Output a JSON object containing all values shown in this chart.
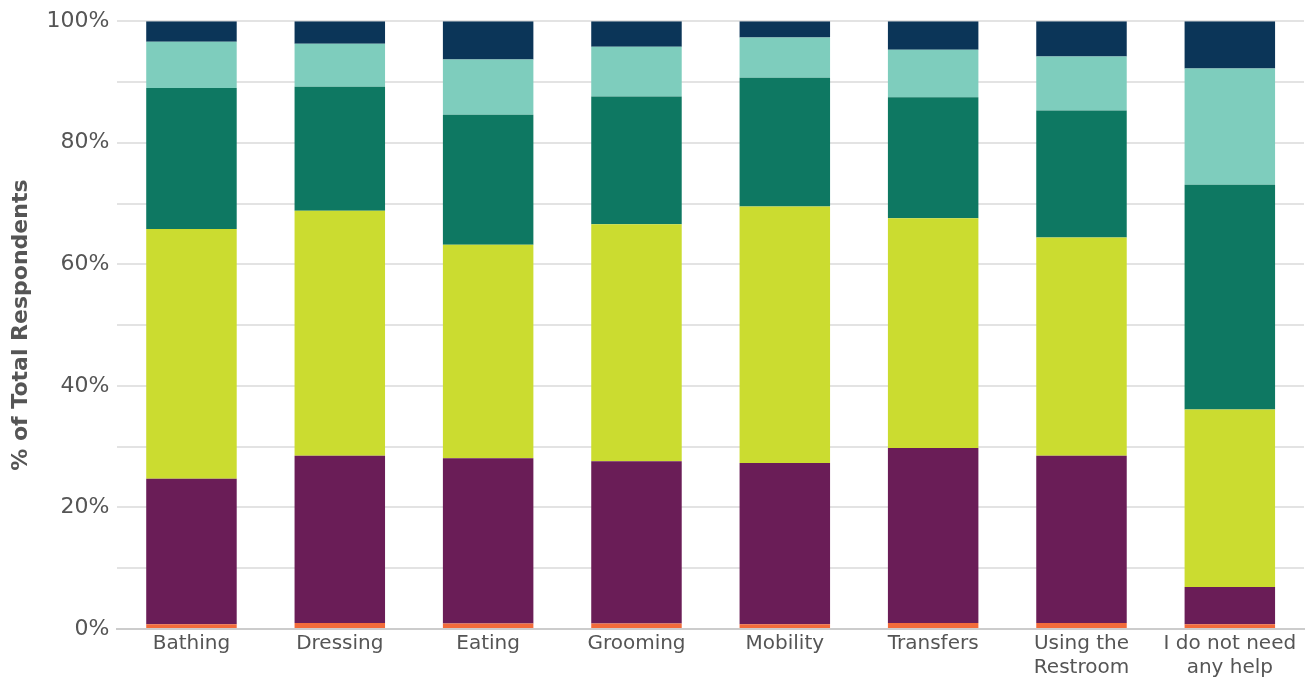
{
  "chart_data": {
    "type": "bar",
    "stacked": true,
    "ylabel": "% of Total Respondents",
    "categories": [
      "Bathing",
      "Dressing",
      "Eating",
      "Grooming",
      "Mobility",
      "Transfers",
      "Using the Restroom",
      "I do not need any help"
    ],
    "series": [
      {
        "color": "#f26b3a",
        "values": [
          0.8,
          1.0,
          0.9,
          0.9,
          0.8,
          1.0,
          1.0,
          0.8
        ]
      },
      {
        "color": "#6a1d57",
        "values": [
          23.9,
          27.5,
          27.2,
          26.7,
          26.5,
          28.8,
          27.5,
          6.1
        ]
      },
      {
        "color": "#cbdc30",
        "values": [
          41.1,
          40.3,
          35.1,
          39.0,
          42.2,
          37.8,
          35.9,
          29.2
        ]
      },
      {
        "color": "#0e7862",
        "values": [
          23.2,
          20.4,
          21.4,
          21.0,
          21.2,
          19.9,
          20.9,
          37.0
        ]
      },
      {
        "color": "#7ecdbd",
        "values": [
          7.6,
          7.1,
          9.1,
          8.2,
          6.6,
          7.8,
          8.9,
          19.1
        ]
      },
      {
        "color": "#0b3558",
        "values": [
          3.4,
          3.7,
          6.3,
          4.2,
          2.7,
          4.7,
          5.8,
          7.8
        ]
      }
    ],
    "ylim": [
      0,
      100
    ],
    "yticks": [
      {
        "value": 0,
        "label": "0%"
      },
      {
        "value": 10,
        "label": null
      },
      {
        "value": 20,
        "label": "20%"
      },
      {
        "value": 30,
        "label": null
      },
      {
        "value": 40,
        "label": "40%"
      },
      {
        "value": 50,
        "label": null
      },
      {
        "value": 60,
        "label": "60%"
      },
      {
        "value": 70,
        "label": null
      },
      {
        "value": 80,
        "label": "80%"
      },
      {
        "value": 90,
        "label": null
      },
      {
        "value": 100,
        "label": "100%"
      }
    ],
    "grid": "y",
    "legend": false
  }
}
